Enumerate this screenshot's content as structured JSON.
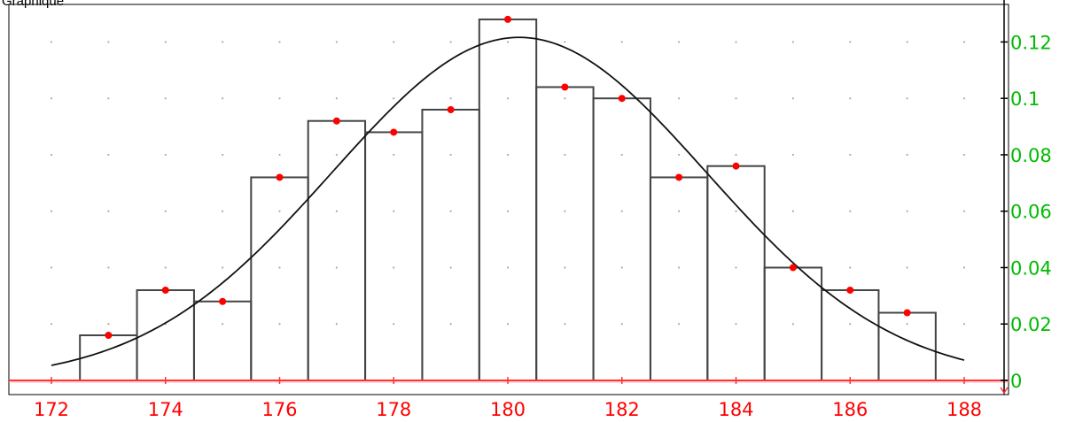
{
  "window": {
    "title": "Graphique"
  },
  "chart_data": {
    "type": "bar",
    "title": "",
    "xlabel": "",
    "ylabel": "",
    "xlim": [
      171.2,
      188.8
    ],
    "ylim": [
      -0.0015,
      0.13
    ],
    "x_ticks": [
      172,
      174,
      176,
      178,
      180,
      182,
      184,
      186,
      188
    ],
    "x_tick_labels": [
      "172",
      "174",
      "176",
      "178",
      "180",
      "182",
      "184",
      "186",
      "188"
    ],
    "y_ticks": [
      0,
      0.02,
      0.04,
      0.06,
      0.08,
      0.1,
      0.12
    ],
    "y_tick_labels": [
      "0",
      "0.02",
      "0.04",
      "0.06",
      "0.08",
      "0.1",
      "0.12"
    ],
    "grid": "dotted",
    "histogram": {
      "bin_width": 1,
      "centers": [
        173,
        174,
        175,
        176,
        177,
        178,
        179,
        180,
        181,
        182,
        183,
        184,
        185,
        186,
        187
      ],
      "values": [
        0.016,
        0.032,
        0.028,
        0.072,
        0.092,
        0.088,
        0.096,
        0.128,
        0.104,
        0.1,
        0.072,
        0.076,
        0.04,
        0.032,
        0.024
      ]
    },
    "normal_curve": {
      "mean": 180.2,
      "std": 3.28,
      "x_range": [
        172,
        188
      ]
    },
    "colors": {
      "x_tick_text": "#ff0000",
      "y_tick_text": "#00bb00",
      "points": "#ff0000",
      "x_axis": "#ff3333",
      "y_axis": "#000000",
      "bars": "#444444",
      "curve": "#111111",
      "grid": "#aaaaaa"
    }
  }
}
